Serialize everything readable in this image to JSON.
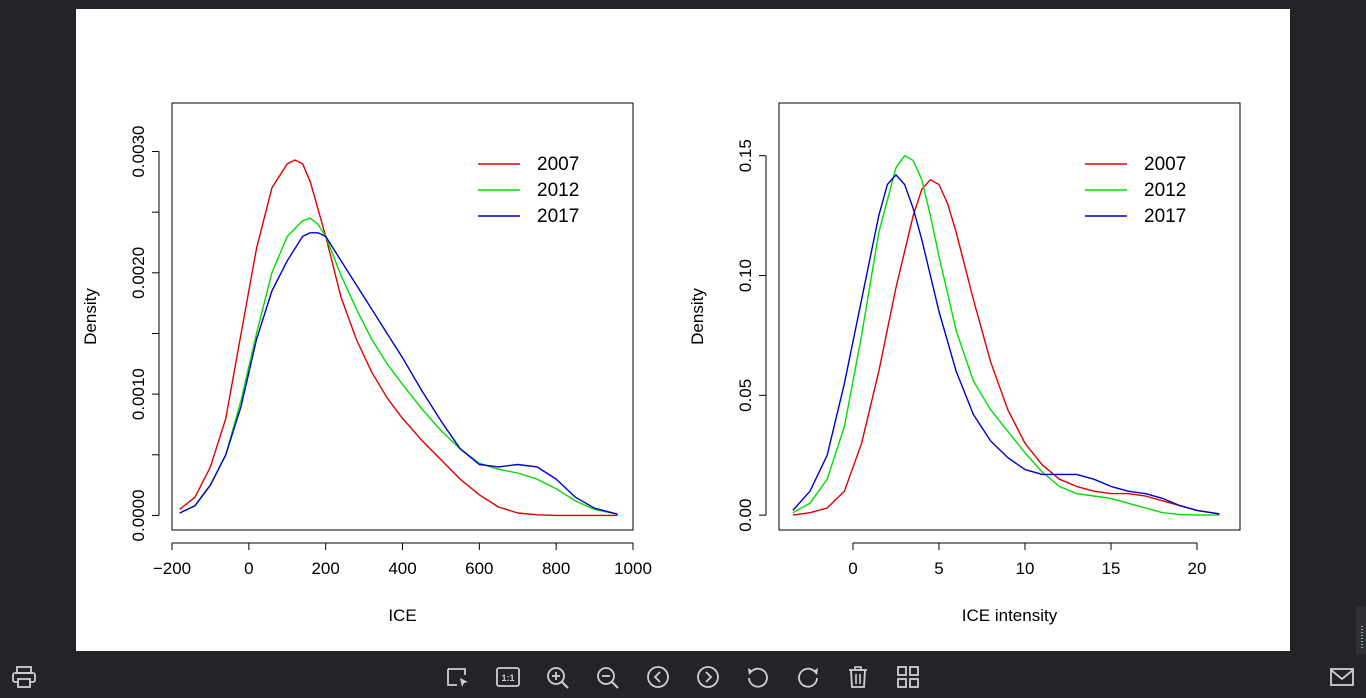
{
  "viewer": {
    "toolbar": {
      "print": "print-icon",
      "select": "select-region-icon",
      "actual_size_label": "1:1",
      "zoom_in": "zoom-in-icon",
      "zoom_out": "zoom-out-icon",
      "prev": "previous-icon",
      "next": "next-icon",
      "rotate_left": "rotate-left-icon",
      "rotate_right": "rotate-right-icon",
      "delete": "trash-icon",
      "gallery": "grid-icon",
      "mail": "mail-icon"
    },
    "colors": {
      "background": "#242428",
      "icon": "#cfcfd4"
    }
  },
  "chart_data": [
    {
      "type": "line",
      "title": "",
      "xlabel": "ICE",
      "ylabel": "Density",
      "xlim": [
        -200,
        1000
      ],
      "ylim": [
        -0.00012,
        0.0034
      ],
      "xticks": [
        -200,
        0,
        200,
        400,
        600,
        800,
        1000
      ],
      "yticks": [
        0,
        0.0005,
        0.001,
        0.0015,
        0.002,
        0.0025,
        0.003
      ],
      "ytick_labels": [
        "0.0000",
        "",
        "0.0010",
        "",
        "0.0020",
        "",
        "0.0030"
      ],
      "legend": {
        "position": "top-right",
        "entries": [
          "2007",
          "2012",
          "2017"
        ]
      },
      "series": [
        {
          "name": "2007",
          "color": "#dd0000",
          "x": [
            -180,
            -140,
            -100,
            -60,
            -20,
            20,
            60,
            100,
            120,
            140,
            160,
            200,
            240,
            280,
            320,
            360,
            400,
            450,
            500,
            550,
            600,
            650,
            700,
            750,
            800,
            850,
            900,
            960
          ],
          "y": [
            5e-05,
            0.00015,
            0.0004,
            0.0008,
            0.0015,
            0.0022,
            0.0027,
            0.0029,
            0.00293,
            0.0029,
            0.00275,
            0.0023,
            0.0018,
            0.00145,
            0.00118,
            0.00097,
            0.0008,
            0.00062,
            0.00046,
            0.0003,
            0.00017,
            7e-05,
            2e-05,
            5e-06,
            0,
            0,
            0,
            0
          ]
        },
        {
          "name": "2012",
          "color": "#00dd00",
          "x": [
            -180,
            -140,
            -100,
            -60,
            -20,
            20,
            60,
            100,
            140,
            160,
            180,
            200,
            240,
            280,
            320,
            360,
            400,
            450,
            500,
            550,
            600,
            650,
            700,
            750,
            800,
            850,
            900,
            960
          ],
          "y": [
            2e-05,
            8e-05,
            0.00025,
            0.0005,
            0.00095,
            0.0015,
            0.002,
            0.0023,
            0.00243,
            0.00245,
            0.0024,
            0.0023,
            0.00198,
            0.0017,
            0.00145,
            0.00125,
            0.00108,
            0.00088,
            0.0007,
            0.00055,
            0.00043,
            0.00038,
            0.00035,
            0.0003,
            0.00022,
            0.00012,
            5e-05,
            1e-05
          ]
        },
        {
          "name": "2017",
          "color": "#0000cc",
          "x": [
            -180,
            -140,
            -100,
            -60,
            -20,
            20,
            60,
            100,
            140,
            160,
            180,
            200,
            240,
            280,
            320,
            360,
            400,
            450,
            500,
            550,
            600,
            650,
            700,
            750,
            800,
            850,
            900,
            960
          ],
          "y": [
            2e-05,
            8e-05,
            0.00025,
            0.0005,
            0.0009,
            0.00145,
            0.00185,
            0.0021,
            0.0023,
            0.00233,
            0.00233,
            0.0023,
            0.0021,
            0.0019,
            0.0017,
            0.0015,
            0.0013,
            0.00103,
            0.00078,
            0.00055,
            0.00042,
            0.0004,
            0.00042,
            0.0004,
            0.0003,
            0.00015,
            6e-05,
            1e-05
          ]
        }
      ]
    },
    {
      "type": "line",
      "title": "",
      "xlabel": "ICE intensity",
      "ylabel": "Density",
      "xlim": [
        -4.3,
        22.5
      ],
      "ylim": [
        -0.0062,
        0.172
      ],
      "xticks": [
        0,
        5,
        10,
        15,
        20
      ],
      "yticks": [
        0,
        0.05,
        0.1,
        0.15
      ],
      "ytick_labels": [
        "0.00",
        "0.05",
        "0.10",
        "0.15"
      ],
      "legend": {
        "position": "top-right",
        "entries": [
          "2007",
          "2012",
          "2017"
        ]
      },
      "series": [
        {
          "name": "2007",
          "color": "#dd0000",
          "x": [
            -3.5,
            -2.5,
            -1.5,
            -0.5,
            0.5,
            1.5,
            2.5,
            3.5,
            4,
            4.5,
            5,
            5.5,
            6,
            7,
            8,
            9,
            10,
            11,
            12,
            13,
            14,
            15,
            16,
            17,
            18,
            19,
            20,
            21.3
          ],
          "y": [
            0,
            0.001,
            0.003,
            0.01,
            0.03,
            0.06,
            0.095,
            0.125,
            0.136,
            0.14,
            0.138,
            0.13,
            0.118,
            0.09,
            0.064,
            0.044,
            0.03,
            0.021,
            0.015,
            0.012,
            0.01,
            0.009,
            0.009,
            0.008,
            0.006,
            0.004,
            0.002,
            0.0005
          ]
        },
        {
          "name": "2012",
          "color": "#00dd00",
          "x": [
            -3.5,
            -2.5,
            -1.5,
            -0.5,
            0.5,
            1.5,
            2.5,
            3,
            3.5,
            4,
            4.5,
            5,
            6,
            7,
            8,
            9,
            10,
            11,
            12,
            13,
            14,
            15,
            16,
            17,
            18,
            19,
            20,
            21.3
          ],
          "y": [
            0.001,
            0.005,
            0.015,
            0.037,
            0.075,
            0.118,
            0.145,
            0.15,
            0.148,
            0.14,
            0.125,
            0.108,
            0.077,
            0.056,
            0.044,
            0.035,
            0.026,
            0.018,
            0.012,
            0.009,
            0.008,
            0.007,
            0.005,
            0.003,
            0.001,
            0.0003,
            0,
            0
          ]
        },
        {
          "name": "2017",
          "color": "#0000cc",
          "x": [
            -3.5,
            -2.5,
            -1.5,
            -0.5,
            0.5,
            1.5,
            2,
            2.5,
            3,
            3.5,
            4,
            5,
            6,
            7,
            8,
            9,
            10,
            11,
            12,
            13,
            14,
            15,
            16,
            17,
            18,
            19,
            20,
            21.3
          ],
          "y": [
            0.002,
            0.01,
            0.025,
            0.055,
            0.09,
            0.125,
            0.138,
            0.142,
            0.138,
            0.128,
            0.115,
            0.085,
            0.06,
            0.042,
            0.031,
            0.024,
            0.019,
            0.017,
            0.017,
            0.017,
            0.015,
            0.012,
            0.01,
            0.009,
            0.007,
            0.004,
            0.002,
            0.0005
          ]
        }
      ]
    }
  ]
}
